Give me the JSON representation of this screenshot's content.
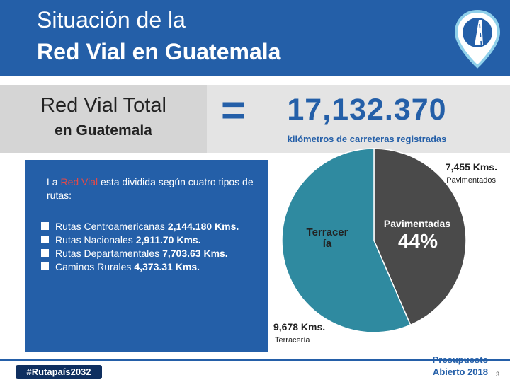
{
  "header": {
    "title_line1": "Situación de la",
    "title_line2": "Red Vial en Guatemala"
  },
  "summary": {
    "label_line1": "Red Vial Total",
    "label_line2": "en Guatemala",
    "equals": "=",
    "total": "17,132.370",
    "total_description": "kilómetros de carreteras registradas"
  },
  "info_box": {
    "intro_before": "La ",
    "intro_highlight": "Red Vial",
    "intro_after": " esta dividida según cuatro tipos de rutas:",
    "routes": [
      {
        "label": "Rutas Centroamericanas",
        "value": "2,144.180 Kms."
      },
      {
        "label": "Rutas Nacionales",
        "value": "2,911.70 Kms."
      },
      {
        "label": "Rutas Departamentales",
        "value": "7,703.63 Kms."
      },
      {
        "label": "Caminos Rurales",
        "value": "4,373.31 Kms."
      }
    ]
  },
  "chart_data": {
    "type": "pie",
    "title": "",
    "slices": [
      {
        "name": "Pavimentadas",
        "value": 7455,
        "percent": 44,
        "percent_text": "44%",
        "label": "Pavimentadas",
        "value_text": "7,455 Kms.",
        "caption": "Pavimentados",
        "color": "#4a4a4a"
      },
      {
        "name": "Terracería",
        "value": 9678,
        "label_line1": "Terracer",
        "label_line2": "ía",
        "value_text": "9,678 Kms.",
        "caption": "Terracería",
        "color": "#2f8aa0"
      }
    ]
  },
  "footer": {
    "hashtag": "#Rutapaís2032",
    "presupuesto_line1": "Presupuesto",
    "presupuesto_line2": "Abierto 2018",
    "slide_number": "3"
  },
  "colors": {
    "brand_blue": "#245fa8",
    "navy": "#0f2f5f",
    "highlight_red": "#e24a4a",
    "band_gray": "#e4e4e4"
  }
}
